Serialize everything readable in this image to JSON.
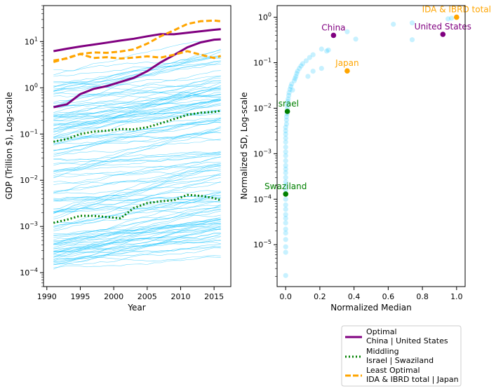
{
  "colors": {
    "optimal": "#800080",
    "middling": "#008000",
    "least": "#FFA500",
    "background_lines": "#00BFFF"
  },
  "chart_data": [
    {
      "type": "line",
      "xlabel": "Year",
      "ylabel": "GDP (Trillion $), Log-scale",
      "xlim": [
        1989.5,
        2017.5
      ],
      "ylim": [
        5e-05,
        60
      ],
      "yscale": "log",
      "xticks": [
        1990,
        1995,
        2000,
        2005,
        2010,
        2015
      ],
      "yticks": [
        {
          "v": 0.0001,
          "base": "10",
          "exp": "−4"
        },
        {
          "v": 0.001,
          "base": "10",
          "exp": "−3"
        },
        {
          "v": 0.01,
          "base": "10",
          "exp": "−2"
        },
        {
          "v": 0.1,
          "base": "10",
          "exp": "−1"
        },
        {
          "v": 1,
          "base": "10",
          "exp": "0"
        },
        {
          "v": 10,
          "base": "10",
          "exp": "1"
        }
      ],
      "x": [
        1991,
        1993,
        1995,
        1997,
        1999,
        2001,
        2003,
        2005,
        2007,
        2009,
        2011,
        2013,
        2015,
        2016
      ],
      "series": [
        {
          "name": "United States",
          "group": "optimal",
          "values": [
            6.2,
            7.0,
            7.8,
            8.6,
            9.5,
            10.5,
            11.5,
            13.0,
            14.5,
            14.4,
            15.5,
            16.7,
            18.0,
            18.6
          ]
        },
        {
          "name": "China",
          "group": "optimal",
          "values": [
            0.38,
            0.44,
            0.73,
            0.95,
            1.09,
            1.34,
            1.64,
            2.29,
            3.55,
            5.1,
            7.5,
            9.6,
            11.0,
            11.2
          ]
        },
        {
          "name": "IDA & IBRD total",
          "group": "least",
          "values": [
            3.9,
            4.3,
            5.4,
            5.8,
            5.7,
            6.1,
            6.8,
            9.0,
            13.0,
            17.5,
            24.0,
            27.5,
            28.5,
            27.5
          ]
        },
        {
          "name": "Japan",
          "group": "least",
          "values": [
            3.6,
            4.4,
            5.4,
            4.4,
            4.6,
            4.3,
            4.5,
            4.8,
            4.5,
            5.2,
            6.2,
            5.2,
            4.4,
            4.9
          ]
        },
        {
          "name": "Israel",
          "group": "middling",
          "values": [
            0.068,
            0.078,
            0.1,
            0.113,
            0.118,
            0.128,
            0.126,
            0.14,
            0.17,
            0.21,
            0.26,
            0.29,
            0.3,
            0.32
          ]
        },
        {
          "name": "Swaziland",
          "group": "middling",
          "values": [
            0.0012,
            0.0014,
            0.0017,
            0.0017,
            0.0016,
            0.0015,
            0.0025,
            0.0032,
            0.0035,
            0.0037,
            0.0048,
            0.0046,
            0.0041,
            0.0037
          ]
        }
      ]
    },
    {
      "type": "scatter",
      "xlabel": "Normalized Median",
      "ylabel": "Normalized SD, Log-scale",
      "xlim": [
        -0.05,
        1.05
      ],
      "ylim": [
        1.2e-06,
        1.8
      ],
      "yscale": "log",
      "xticks": [
        0.0,
        0.2,
        0.4,
        0.6,
        0.8,
        1.0
      ],
      "yticks": [
        {
          "v": 1e-05,
          "base": "10",
          "exp": "−5"
        },
        {
          "v": 0.0001,
          "base": "10",
          "exp": "−4"
        },
        {
          "v": 0.001,
          "base": "10",
          "exp": "−3"
        },
        {
          "v": 0.01,
          "base": "10",
          "exp": "−2"
        },
        {
          "v": 0.1,
          "base": "10",
          "exp": "−1"
        },
        {
          "v": 1,
          "base": "10",
          "exp": "0"
        }
      ],
      "highlighted": [
        {
          "label": "China",
          "x": 0.28,
          "y": 0.4,
          "group": "optimal"
        },
        {
          "label": "United States",
          "x": 0.92,
          "y": 0.42,
          "group": "optimal"
        },
        {
          "label": "IDA & IBRD total",
          "x": 1.0,
          "y": 1.0,
          "group": "least"
        },
        {
          "label": "Japan",
          "x": 0.36,
          "y": 0.066,
          "group": "least"
        },
        {
          "label": "Israel",
          "x": 0.01,
          "y": 0.0085,
          "group": "middling"
        },
        {
          "label": "Swaziland",
          "x": 0.0,
          "y": 0.00013,
          "group": "middling"
        }
      ],
      "points": [
        [
          0.0,
          2.1e-06
        ],
        [
          0.0,
          6.8e-06
        ],
        [
          0.0,
          9e-06
        ],
        [
          0.0,
          1.3e-05
        ],
        [
          0.0,
          1.8e-05
        ],
        [
          0.0,
          2.2e-05
        ],
        [
          0.0,
          3e-05
        ],
        [
          0.0,
          3.8e-05
        ],
        [
          0.0,
          4.6e-05
        ],
        [
          0.0,
          6e-05
        ],
        [
          0.0,
          7.5e-05
        ],
        [
          0.0,
          0.0001
        ],
        [
          0.0,
          0.00016
        ],
        [
          0.0,
          0.0002
        ],
        [
          0.0,
          0.00024
        ],
        [
          0.0,
          0.0003
        ],
        [
          0.0,
          0.00038
        ],
        [
          0.0,
          0.00046
        ],
        [
          0.0,
          0.00055
        ],
        [
          0.0,
          0.0007
        ],
        [
          0.0,
          0.0009
        ],
        [
          0.0,
          0.0011
        ],
        [
          0.0,
          0.0014
        ],
        [
          0.0,
          0.0018
        ],
        [
          0.0,
          0.0022
        ],
        [
          0.0,
          0.0027
        ],
        [
          0.0,
          0.0032
        ],
        [
          0.0,
          0.0038
        ],
        [
          0.005,
          0.0045
        ],
        [
          0.005,
          0.0055
        ],
        [
          0.005,
          0.0065
        ],
        [
          0.008,
          0.0075
        ],
        [
          0.01,
          0.01
        ],
        [
          0.01,
          0.012
        ],
        [
          0.012,
          0.014
        ],
        [
          0.015,
          0.016
        ],
        [
          0.018,
          0.019
        ],
        [
          0.02,
          0.022
        ],
        [
          0.025,
          0.026
        ],
        [
          0.03,
          0.03
        ],
        [
          0.035,
          0.034
        ],
        [
          0.04,
          0.025
        ],
        [
          0.05,
          0.04
        ],
        [
          0.055,
          0.045
        ],
        [
          0.06,
          0.05
        ],
        [
          0.065,
          0.058
        ],
        [
          0.07,
          0.065
        ],
        [
          0.08,
          0.075
        ],
        [
          0.09,
          0.085
        ],
        [
          0.1,
          0.095
        ],
        [
          0.12,
          0.11
        ],
        [
          0.13,
          0.05
        ],
        [
          0.14,
          0.13
        ],
        [
          0.16,
          0.15
        ],
        [
          0.16,
          0.065
        ],
        [
          0.21,
          0.2
        ],
        [
          0.21,
          0.075
        ],
        [
          0.24,
          0.18
        ],
        [
          0.25,
          0.19
        ],
        [
          0.36,
          0.48
        ],
        [
          0.41,
          0.33
        ],
        [
          0.63,
          0.7
        ],
        [
          0.74,
          0.32
        ],
        [
          0.74,
          0.75
        ],
        [
          0.95,
          0.92
        ],
        [
          0.97,
          0.95
        ]
      ]
    }
  ],
  "legend": {
    "entries": [
      {
        "title": "Optimal",
        "subtitle": "China | United States",
        "style": "solid",
        "group": "optimal"
      },
      {
        "title": "Middling",
        "subtitle": "Israel | Swaziland",
        "style": "dotted",
        "group": "middling"
      },
      {
        "title": "Least Optimal",
        "subtitle": "IDA & IBRD total | Japan",
        "style": "dashed",
        "group": "least"
      }
    ]
  }
}
